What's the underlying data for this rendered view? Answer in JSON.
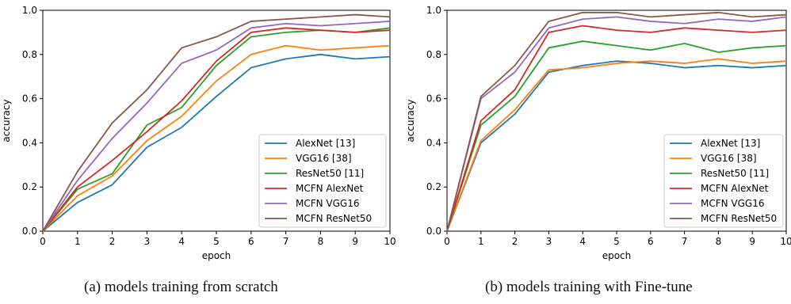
{
  "colors": {
    "AlexNet": "#1f77b4",
    "VGG16": "#ff7f0e",
    "ResNet50": "#2ca02c",
    "MCFN_AlexNet": "#d62728",
    "MCFN_VGG16": "#9467bd",
    "MCFN_ResNet50": "#8c564b"
  },
  "captions": {
    "a": "(a) models training from scratch",
    "b": "(b) models training with Fine-tune"
  },
  "chart_data": [
    {
      "type": "line",
      "xlabel": "epoch",
      "ylabel": "accuracy",
      "xlim": [
        0,
        10
      ],
      "ylim": [
        0,
        1.0
      ],
      "xticks": [
        "0",
        "1",
        "2",
        "3",
        "4",
        "5",
        "6",
        "7",
        "8",
        "9",
        "10"
      ],
      "yticks": [
        "0.0",
        "0.2",
        "0.4",
        "0.6",
        "0.8",
        "1.0"
      ],
      "grid": false,
      "legend": "bottom-right",
      "x": [
        0,
        1,
        2,
        3,
        4,
        5,
        6,
        7,
        8,
        9,
        10
      ],
      "series": [
        {
          "name": "AlexNet [13]",
          "color_key": "AlexNet",
          "values": [
            0,
            0.13,
            0.21,
            0.38,
            0.47,
            0.61,
            0.74,
            0.78,
            0.8,
            0.78,
            0.79
          ]
        },
        {
          "name": "VGG16 [38]",
          "color_key": "VGG16",
          "values": [
            0,
            0.16,
            0.25,
            0.41,
            0.52,
            0.68,
            0.8,
            0.84,
            0.82,
            0.83,
            0.84
          ]
        },
        {
          "name": "ResNet50 [11]",
          "color_key": "ResNet50",
          "values": [
            0,
            0.19,
            0.26,
            0.48,
            0.56,
            0.75,
            0.88,
            0.9,
            0.91,
            0.9,
            0.92
          ]
        },
        {
          "name": "MCFN AlexNet",
          "color_key": "MCFN_AlexNet",
          "values": [
            0,
            0.2,
            0.32,
            0.45,
            0.59,
            0.77,
            0.9,
            0.92,
            0.91,
            0.9,
            0.91
          ]
        },
        {
          "name": "MCFN VGG16",
          "color_key": "MCFN_VGG16",
          "values": [
            0,
            0.23,
            0.42,
            0.58,
            0.76,
            0.82,
            0.92,
            0.94,
            0.93,
            0.94,
            0.95
          ]
        },
        {
          "name": "MCFN ResNet50",
          "color_key": "MCFN_ResNet50",
          "values": [
            0,
            0.27,
            0.49,
            0.64,
            0.83,
            0.88,
            0.95,
            0.96,
            0.97,
            0.98,
            0.97
          ]
        }
      ]
    },
    {
      "type": "line",
      "xlabel": "epoch",
      "ylabel": "accuracy",
      "xlim": [
        0,
        10
      ],
      "ylim": [
        0,
        1.0
      ],
      "xticks": [
        "0",
        "1",
        "2",
        "3",
        "4",
        "5",
        "6",
        "7",
        "8",
        "9",
        "10"
      ],
      "yticks": [
        "0.0",
        "0.2",
        "0.4",
        "0.6",
        "0.8",
        "1.0"
      ],
      "grid": false,
      "legend": "bottom-right",
      "x": [
        0,
        1,
        2,
        3,
        4,
        5,
        6,
        7,
        8,
        9,
        10
      ],
      "series": [
        {
          "name": "AlexNet [13]",
          "color_key": "AlexNet",
          "values": [
            0,
            0.4,
            0.53,
            0.72,
            0.75,
            0.77,
            0.76,
            0.74,
            0.75,
            0.74,
            0.75
          ]
        },
        {
          "name": "VGG16 [38]",
          "color_key": "VGG16",
          "values": [
            0,
            0.41,
            0.55,
            0.73,
            0.74,
            0.76,
            0.77,
            0.76,
            0.78,
            0.76,
            0.77
          ]
        },
        {
          "name": "ResNet50 [11]",
          "color_key": "ResNet50",
          "values": [
            0,
            0.48,
            0.61,
            0.83,
            0.86,
            0.84,
            0.82,
            0.85,
            0.81,
            0.83,
            0.84
          ]
        },
        {
          "name": "MCFN AlexNet",
          "color_key": "MCFN_AlexNet",
          "values": [
            0,
            0.5,
            0.64,
            0.9,
            0.93,
            0.91,
            0.9,
            0.92,
            0.91,
            0.9,
            0.91
          ]
        },
        {
          "name": "MCFN VGG16",
          "color_key": "MCFN_VGG16",
          "values": [
            0,
            0.6,
            0.72,
            0.92,
            0.96,
            0.97,
            0.95,
            0.94,
            0.96,
            0.95,
            0.97
          ]
        },
        {
          "name": "MCFN ResNet50",
          "color_key": "MCFN_ResNet50",
          "values": [
            0,
            0.61,
            0.75,
            0.95,
            0.99,
            0.99,
            0.97,
            0.98,
            0.99,
            0.97,
            0.98
          ]
        }
      ]
    }
  ]
}
